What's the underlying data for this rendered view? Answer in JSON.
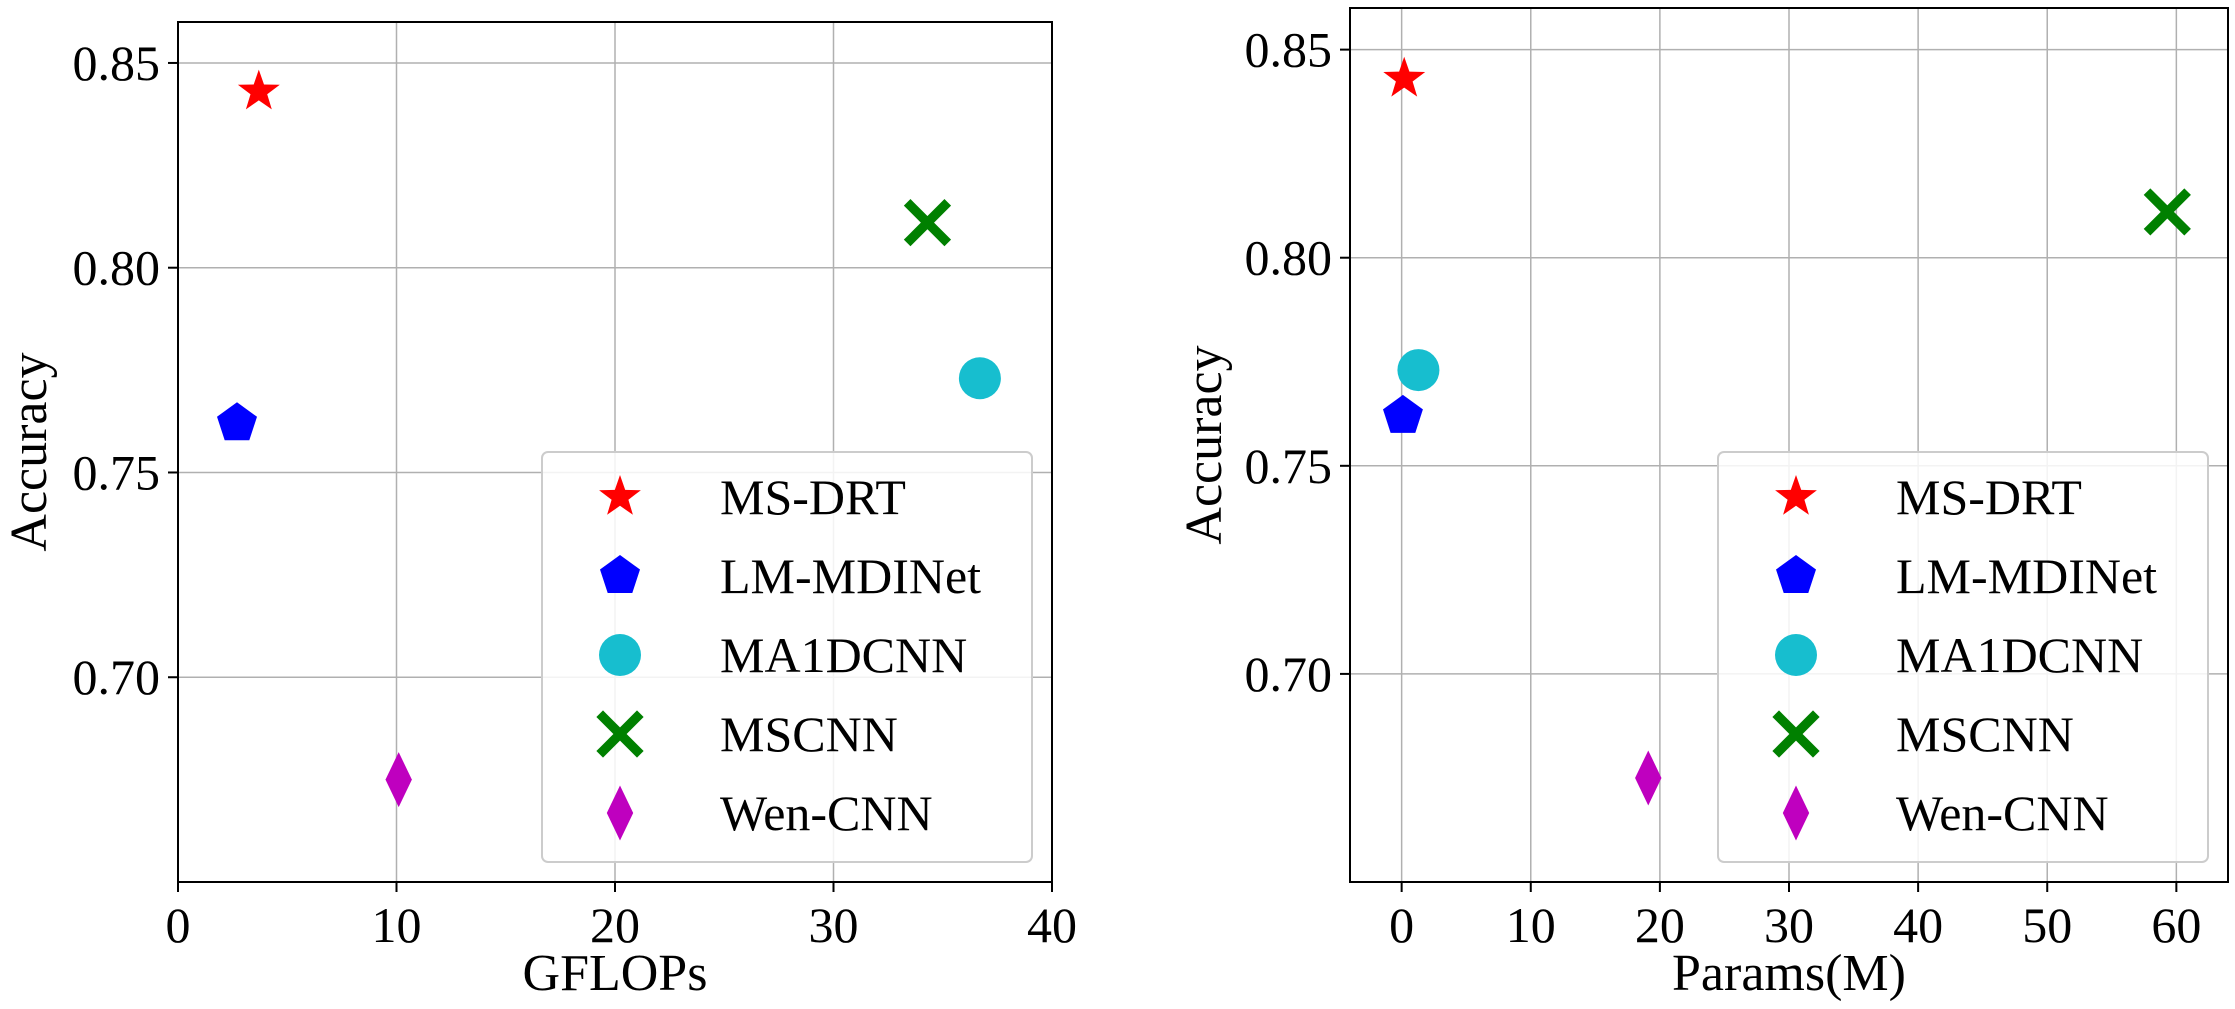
{
  "chart_data": [
    {
      "type": "scatter",
      "title": "",
      "xlabel": "GFLOPs",
      "ylabel": "Accuracy",
      "xlim": [
        0,
        40
      ],
      "ylim": [
        0.65,
        0.86
      ],
      "xticks": [
        0,
        10,
        20,
        30,
        40
      ],
      "xtick_labels": [
        "0",
        "10",
        "20",
        "30",
        "40"
      ],
      "yticks": [
        0.7,
        0.75,
        0.8,
        0.85
      ],
      "ytick_labels": [
        "0.70",
        "0.75",
        "0.80",
        "0.85"
      ],
      "grid": true,
      "legend_position": "lower-right",
      "series": [
        {
          "name": "MS-DRT",
          "marker": "star",
          "color": "#ff0000",
          "x": [
            3.7
          ],
          "y": [
            0.843
          ]
        },
        {
          "name": "LM-MDINet",
          "marker": "pentagon",
          "color": "#0000ff",
          "x": [
            2.7
          ],
          "y": [
            0.762
          ]
        },
        {
          "name": "MA1DCNN",
          "marker": "circle",
          "color": "#17becf",
          "x": [
            36.7
          ],
          "y": [
            0.773
          ]
        },
        {
          "name": "MSCNN",
          "marker": "x-filled",
          "color": "#008000",
          "x": [
            34.3
          ],
          "y": [
            0.811
          ]
        },
        {
          "name": "Wen-CNN",
          "marker": "thin-diamond",
          "color": "#bf00bf",
          "x": [
            10.1
          ],
          "y": [
            0.675
          ]
        }
      ]
    },
    {
      "type": "scatter",
      "title": "",
      "xlabel": "Params(M)",
      "ylabel": "Accuracy",
      "xlim": [
        -4,
        64
      ],
      "ylim": [
        0.65,
        0.86
      ],
      "xticks": [
        0,
        10,
        20,
        30,
        40,
        50,
        60
      ],
      "xtick_labels": [
        "0",
        "10",
        "20",
        "30",
        "40",
        "50",
        "60"
      ],
      "yticks": [
        0.7,
        0.75,
        0.8,
        0.85
      ],
      "ytick_labels": [
        "0.70",
        "0.75",
        "0.80",
        "0.85"
      ],
      "grid": true,
      "legend_position": "lower-right",
      "series": [
        {
          "name": "MS-DRT",
          "marker": "star",
          "color": "#ff0000",
          "x": [
            0.2
          ],
          "y": [
            0.843
          ]
        },
        {
          "name": "LM-MDINet",
          "marker": "pentagon",
          "color": "#0000ff",
          "x": [
            0.1
          ],
          "y": [
            0.762
          ]
        },
        {
          "name": "MA1DCNN",
          "marker": "circle",
          "color": "#17becf",
          "x": [
            1.3
          ],
          "y": [
            0.773
          ]
        },
        {
          "name": "MSCNN",
          "marker": "x-filled",
          "color": "#008000",
          "x": [
            59.3
          ],
          "y": [
            0.811
          ]
        },
        {
          "name": "Wen-CNN",
          "marker": "thin-diamond",
          "color": "#bf00bf",
          "x": [
            19.1
          ],
          "y": [
            0.675
          ]
        }
      ]
    }
  ]
}
